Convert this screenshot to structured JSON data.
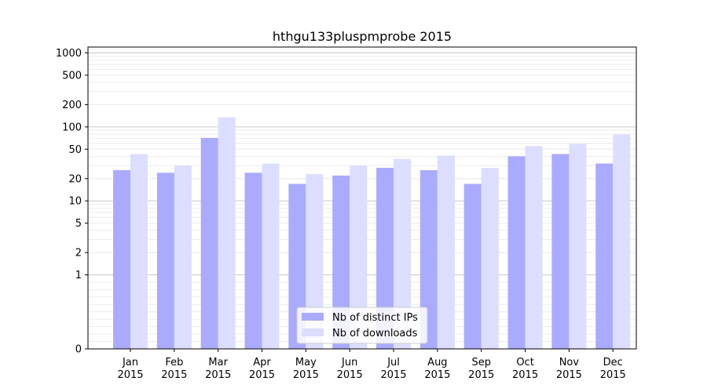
{
  "chart_data": {
    "type": "bar",
    "title": "hthgu133pluspmprobe 2015",
    "xlabel": "",
    "ylabel": "",
    "y_scale": "symlog",
    "ylim": [
      0,
      1200
    ],
    "y_ticks": [
      0,
      1,
      2,
      5,
      10,
      20,
      50,
      100,
      200,
      500,
      1000
    ],
    "y_tick_labels": [
      "0",
      "1",
      "2",
      "5",
      "10",
      "20",
      "50",
      "100",
      "200",
      "500",
      "1000"
    ],
    "grid": true,
    "legend_position": "bottom-center",
    "categories": [
      {
        "month": "Jan",
        "year": "2015"
      },
      {
        "month": "Feb",
        "year": "2015"
      },
      {
        "month": "Mar",
        "year": "2015"
      },
      {
        "month": "Apr",
        "year": "2015"
      },
      {
        "month": "May",
        "year": "2015"
      },
      {
        "month": "Jun",
        "year": "2015"
      },
      {
        "month": "Jul",
        "year": "2015"
      },
      {
        "month": "Aug",
        "year": "2015"
      },
      {
        "month": "Sep",
        "year": "2015"
      },
      {
        "month": "Oct",
        "year": "2015"
      },
      {
        "month": "Nov",
        "year": "2015"
      },
      {
        "month": "Dec",
        "year": "2015"
      }
    ],
    "series": [
      {
        "name": "Nb of distinct IPs",
        "color": "#aaaaff",
        "values": [
          26,
          24,
          71,
          24,
          17,
          22,
          28,
          26,
          17,
          40,
          43,
          32
        ]
      },
      {
        "name": "Nb of downloads",
        "color": "#ddddff",
        "values": [
          43,
          30,
          135,
          32,
          23,
          30,
          37,
          41,
          28,
          55,
          59,
          79
        ]
      }
    ]
  }
}
